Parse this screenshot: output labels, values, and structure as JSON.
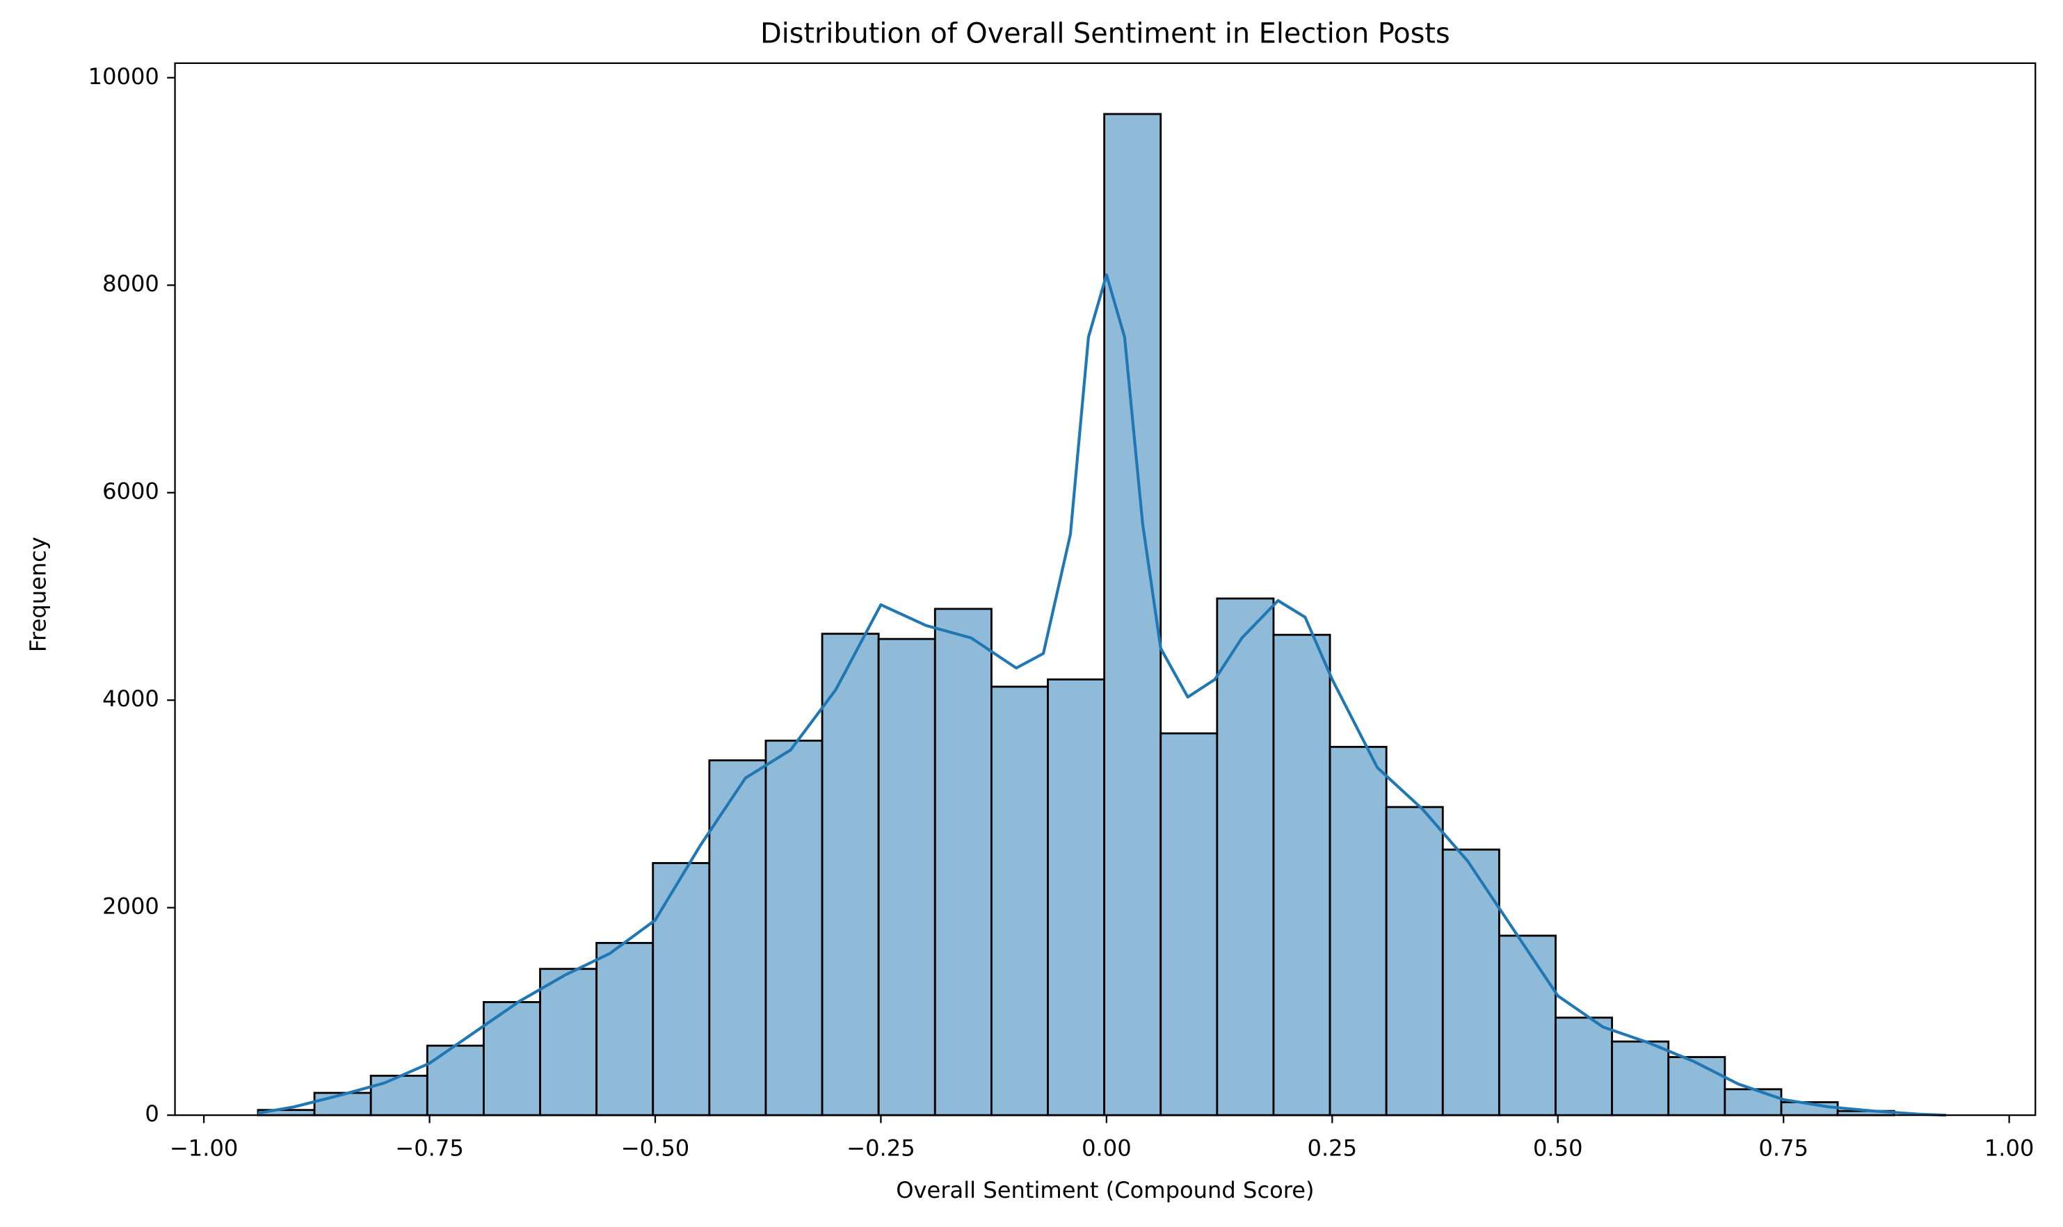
{
  "chart_data": {
    "type": "histogram",
    "title": "Distribution of Overall Sentiment in Election Posts",
    "x_label": "Overall Sentiment (Compound Score)",
    "y_label": "Frequency",
    "color": "#8fbbd9",
    "edge_color": "#000000",
    "bins": [
      -0.94,
      -0.8775,
      -0.815,
      -0.7525,
      -0.69,
      -0.6275,
      -0.565,
      -0.5025,
      -0.44,
      -0.3775,
      -0.315,
      -0.2525,
      -0.19,
      -0.1275,
      -0.065,
      -0.0025,
      0.06,
      0.1225,
      0.185,
      0.2475,
      0.31,
      0.3725,
      0.435,
      0.4975,
      0.56,
      0.6225,
      0.685,
      0.7475,
      0.81,
      0.8725
    ],
    "counts": [
      50,
      215,
      380,
      670,
      1090,
      1410,
      1660,
      2430,
      3420,
      3610,
      4640,
      4590,
      4880,
      4130,
      4200,
      9650,
      3680,
      4980,
      4630,
      3550,
      2970,
      2560,
      1730,
      940,
      710,
      560,
      250,
      125,
      40
    ],
    "kde": {
      "color": "#1f77b4",
      "x": [
        -0.94,
        -0.9,
        -0.85,
        -0.8,
        -0.75,
        -0.7,
        -0.65,
        -0.6,
        -0.55,
        -0.5,
        -0.45,
        -0.4,
        -0.35,
        -0.3,
        -0.25,
        -0.2,
        -0.15,
        -0.1,
        -0.07,
        -0.04,
        -0.02,
        0.0,
        0.02,
        0.04,
        0.06,
        0.09,
        0.12,
        0.15,
        0.19,
        0.22,
        0.25,
        0.3,
        0.35,
        0.4,
        0.45,
        0.5,
        0.55,
        0.6,
        0.65,
        0.7,
        0.75,
        0.8,
        0.85,
        0.9,
        0.93
      ],
      "values": [
        20,
        80,
        190,
        310,
        500,
        800,
        1100,
        1350,
        1560,
        1880,
        2600,
        3250,
        3520,
        4100,
        4920,
        4720,
        4600,
        4310,
        4450,
        5600,
        7500,
        8100,
        7500,
        5700,
        4500,
        4030,
        4200,
        4600,
        4960,
        4800,
        4200,
        3350,
        2950,
        2450,
        1800,
        1150,
        850,
        700,
        520,
        300,
        150,
        80,
        40,
        10,
        0
      ]
    },
    "xlim": [
      -1.032,
      1.029
    ],
    "ylim": [
      0,
      10140
    ],
    "xticks": [
      {
        "value": -1.0,
        "label": "−1.00"
      },
      {
        "value": -0.75,
        "label": "−0.75"
      },
      {
        "value": -0.5,
        "label": "−0.50"
      },
      {
        "value": -0.25,
        "label": "−0.25"
      },
      {
        "value": 0.0,
        "label": "0.00"
      },
      {
        "value": 0.25,
        "label": "0.25"
      },
      {
        "value": 0.5,
        "label": "0.50"
      },
      {
        "value": 0.75,
        "label": "0.75"
      },
      {
        "value": 1.0,
        "label": "1.00"
      }
    ],
    "yticks": [
      0,
      2000,
      4000,
      6000,
      8000,
      10000
    ],
    "grid": false
  }
}
